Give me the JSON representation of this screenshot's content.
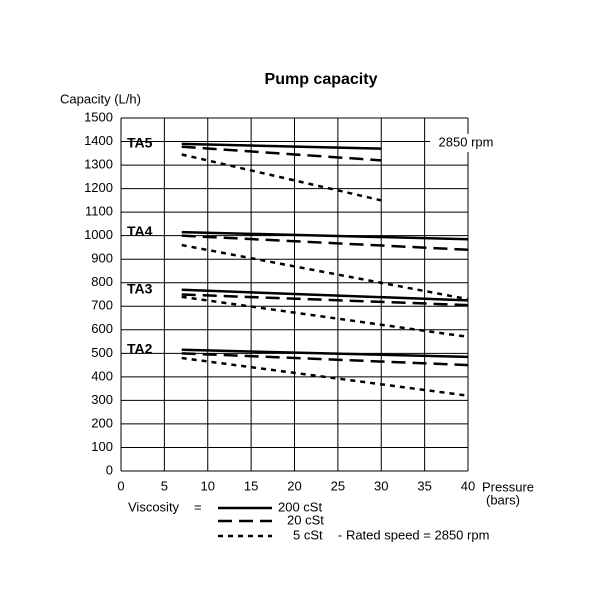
{
  "chart_data": {
    "type": "line",
    "title": "Pump capacity",
    "y_label": "Capacity  (L/h)",
    "x_label": [
      "Pressure",
      "(bars)"
    ],
    "xlim": [
      0,
      40
    ],
    "xticks": [
      0,
      5,
      10,
      15,
      20,
      25,
      30,
      35,
      40
    ],
    "ylim": [
      0,
      1500
    ],
    "yticks": [
      0,
      100,
      200,
      300,
      400,
      500,
      600,
      700,
      800,
      900,
      1000,
      1100,
      1200,
      1300,
      1400,
      1500
    ],
    "grid": true,
    "color": "#000000",
    "annotation": "2850 rpm",
    "groups": [
      {
        "label": "TA5",
        "x": [
          7,
          30
        ],
        "solid": [
          1390,
          1370
        ],
        "dashed": [
          1378,
          1320
        ],
        "dotted": [
          1345,
          1150
        ]
      },
      {
        "label": "TA4",
        "x": [
          7,
          40
        ],
        "solid": [
          1015,
          985
        ],
        "dashed": [
          1000,
          940
        ],
        "dotted": [
          960,
          730
        ]
      },
      {
        "label": "TA3",
        "x": [
          7,
          40
        ],
        "solid": [
          770,
          725
        ],
        "dashed": [
          750,
          705
        ],
        "dotted": [
          740,
          570
        ]
      },
      {
        "label": "TA2",
        "x": [
          7,
          40
        ],
        "solid": [
          515,
          485
        ],
        "dashed": [
          500,
          450
        ],
        "dotted": [
          480,
          320
        ]
      }
    ],
    "legend_title": "Viscosity",
    "legend_equals": "=",
    "legend": [
      {
        "name": "200 cSt",
        "style": "solid"
      },
      {
        "name": "20 cSt",
        "style": "dashed"
      },
      {
        "name": "5 cSt",
        "style": "dotted"
      }
    ],
    "note": "-    Rated speed = 2850 rpm"
  }
}
